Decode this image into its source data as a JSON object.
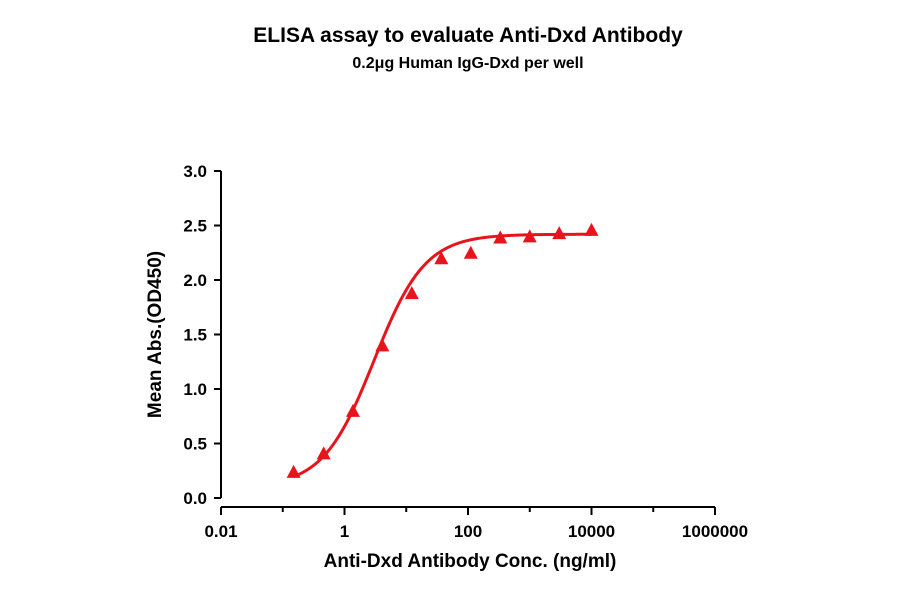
{
  "chart_data": {
    "type": "scatter",
    "title": "ELISA assay to evaluate Anti-Dxd Antibody",
    "subtitle": "0.2μg Human IgG-Dxd per well",
    "xlabel": "Anti-Dxd Antibody Conc. (ng/ml)",
    "ylabel": "Mean Abs.(OD450)",
    "x_scale": "log",
    "xlim": [
      0.01,
      1000000
    ],
    "ylim": [
      0,
      3.0
    ],
    "x_ticks": [
      0.01,
      1,
      100,
      10000,
      1000000
    ],
    "x_tick_labels": [
      "0.01",
      "1",
      "100",
      "10000",
      "1000000"
    ],
    "y_ticks": [
      0,
      0.5,
      1.0,
      1.5,
      2.0,
      2.5,
      3.0
    ],
    "y_tick_labels": [
      "0.0",
      "0.5",
      "1.0",
      "1.5",
      "2.0",
      "2.5",
      "3.0"
    ],
    "grid": false,
    "marker": "triangle",
    "color": "#e8141b",
    "series": [
      {
        "x": [
          0.15,
          0.46,
          1.37,
          4.1,
          12.3,
          37,
          111,
          333,
          1000,
          3000,
          10000
        ],
        "y": [
          0.23,
          0.4,
          0.79,
          1.39,
          1.87,
          2.19,
          2.24,
          2.38,
          2.39,
          2.42,
          2.45
        ]
      }
    ],
    "fit": {
      "type": "4PL",
      "bottom": 0.1,
      "top": 2.42,
      "ec50": 3.0,
      "hill": 1.05,
      "x_range": [
        0.15,
        10000
      ]
    }
  }
}
